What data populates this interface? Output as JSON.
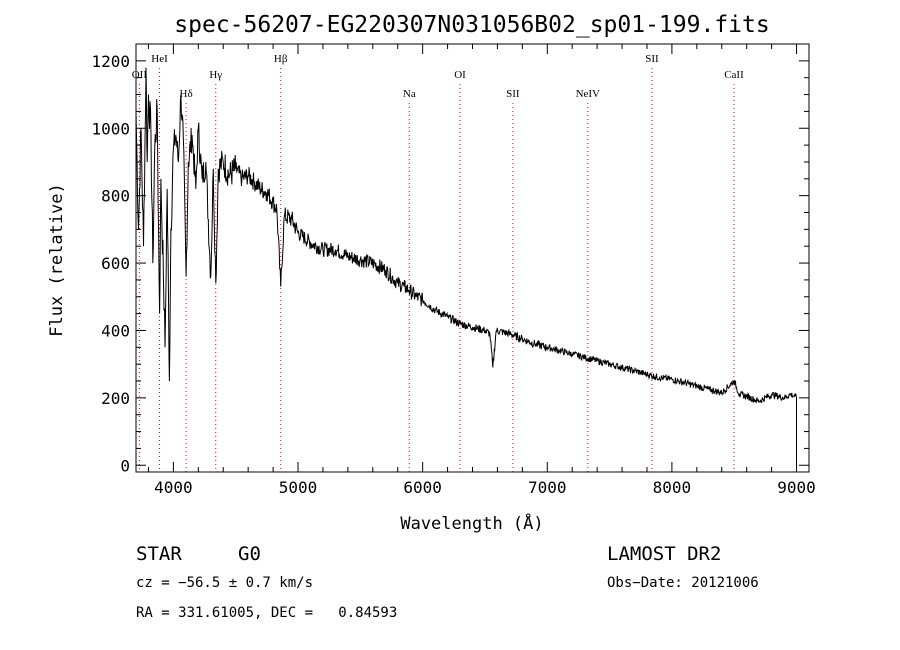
{
  "chart_data": {
    "type": "line",
    "title": "spec-56207-EG220307N031056B02_sp01-199.fits",
    "xlabel": "Wavelength (Å)",
    "ylabel": "Flux (relative)",
    "xlim": [
      3700,
      9100
    ],
    "ylim": [
      -20,
      1250
    ],
    "x_ticks": [
      4000,
      5000,
      6000,
      7000,
      8000,
      9000
    ],
    "y_ticks": [
      0,
      200,
      400,
      600,
      800,
      1000,
      1200
    ],
    "grid": false,
    "series": [
      {
        "name": "spectrum",
        "x": [
          3700,
          3720,
          3740,
          3760,
          3780,
          3790,
          3800,
          3820,
          3835,
          3850,
          3870,
          3889,
          3900,
          3920,
          3933,
          3950,
          3968,
          3980,
          4000,
          4020,
          4040,
          4060,
          4080,
          4102,
          4120,
          4150,
          4180,
          4200,
          4230,
          4260,
          4300,
          4320,
          4340,
          4360,
          4400,
          4450,
          4500,
          4550,
          4600,
          4650,
          4700,
          4750,
          4800,
          4830,
          4861,
          4890,
          4950,
          5000,
          5100,
          5200,
          5300,
          5400,
          5500,
          5600,
          5700,
          5800,
          5850,
          5890,
          5950,
          6000,
          6100,
          6200,
          6300,
          6400,
          6500,
          6540,
          6563,
          6590,
          6700,
          6800,
          6900,
          7000,
          7100,
          7200,
          7300,
          7400,
          7500,
          7600,
          7700,
          7800,
          7900,
          8000,
          8100,
          8200,
          8300,
          8400,
          8498,
          8542,
          8600,
          8662,
          8700,
          8800,
          8900,
          8950,
          8990,
          9000,
          9000
        ],
        "y": [
          1050,
          700,
          1000,
          650,
          1180,
          900,
          1100,
          980,
          600,
          940,
          1050,
          450,
          850,
          560,
          350,
          820,
          250,
          700,
          940,
          980,
          900,
          1100,
          960,
          560,
          900,
          980,
          820,
          1000,
          850,
          900,
          560,
          880,
          540,
          880,
          900,
          860,
          880,
          850,
          860,
          840,
          820,
          810,
          780,
          760,
          530,
          740,
          730,
          690,
          660,
          640,
          640,
          620,
          610,
          600,
          580,
          540,
          530,
          520,
          500,
          490,
          460,
          440,
          420,
          410,
          400,
          390,
          290,
          400,
          390,
          375,
          360,
          350,
          340,
          330,
          320,
          310,
          300,
          290,
          280,
          270,
          260,
          255,
          245,
          235,
          225,
          215,
          250,
          210,
          205,
          195,
          190,
          210,
          200,
          210,
          205,
          200,
          0
        ]
      }
    ],
    "line_markers": [
      {
        "label": "OII",
        "wavelength": 3727,
        "label_row": 2
      },
      {
        "label": "HeI",
        "wavelength": 3889,
        "label_row": 1
      },
      {
        "label": "Hδ",
        "wavelength": 4102,
        "label_row": 3
      },
      {
        "label": "Hγ",
        "wavelength": 4340,
        "label_row": 2
      },
      {
        "label": "Hβ",
        "wavelength": 4861,
        "label_row": 1
      },
      {
        "label": "Na",
        "wavelength": 5893,
        "label_row": 3
      },
      {
        "label": "OI",
        "wavelength": 6300,
        "label_row": 2
      },
      {
        "label": "SII",
        "wavelength": 6724,
        "label_row": 3
      },
      {
        "label": "NeIV",
        "wavelength": 7325,
        "label_row": 3
      },
      {
        "label": "SII",
        "wavelength": 7840,
        "label_row": 1
      },
      {
        "label": "CaII",
        "wavelength": 8498,
        "label_row": 2
      }
    ]
  },
  "info": {
    "class": "STAR",
    "subclass": "G0",
    "survey": "LAMOST DR2",
    "cz": "cz = −56.5 ± 0.7 km/s",
    "obs_date": "Obs−Date: 20121006",
    "radec": "RA = 331.61005, DEC =   0.84593"
  },
  "colors": {
    "line": "#000000",
    "marker": "#ff0000",
    "background": "#ffffff"
  }
}
